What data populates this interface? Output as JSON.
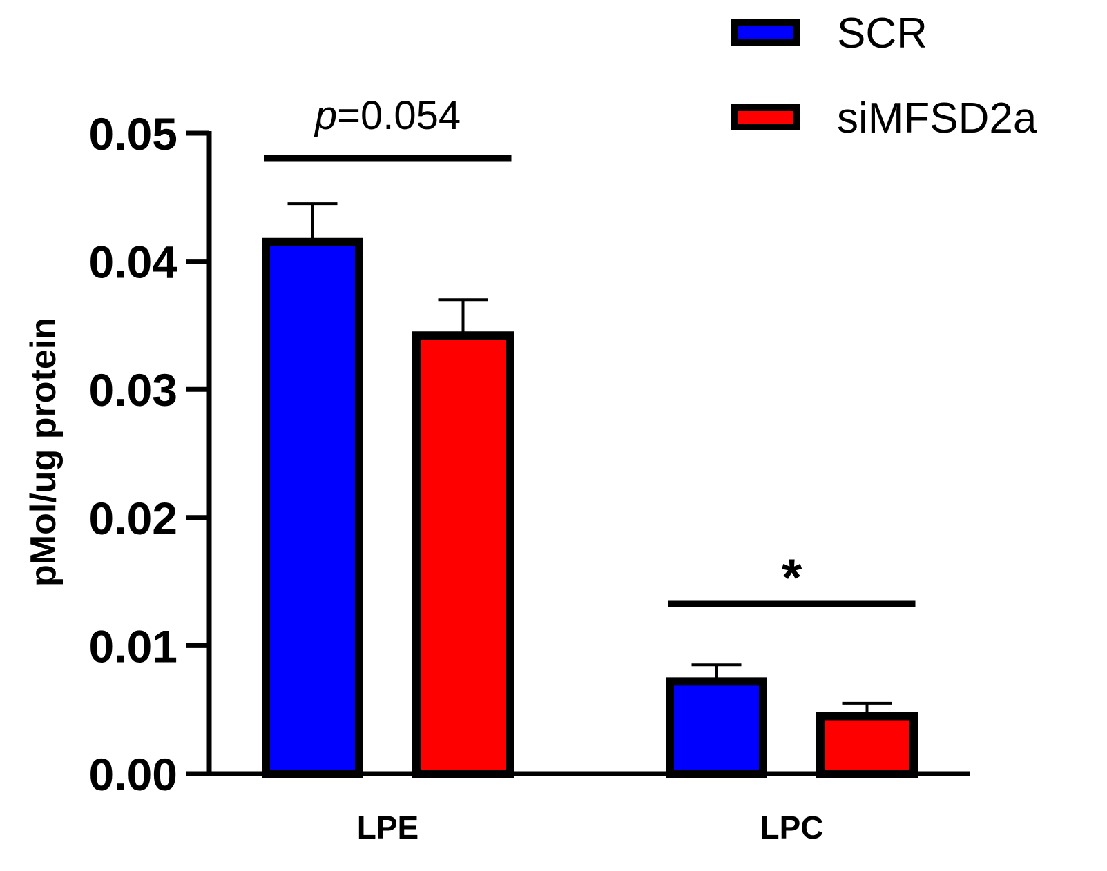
{
  "chart_data": {
    "type": "bar",
    "title": "",
    "xlabel": "",
    "ylabel": "pMol/ug protein",
    "ylim": [
      0,
      0.05
    ],
    "yticks": [
      "0.00",
      "0.01",
      "0.02",
      "0.03",
      "0.04",
      "0.05"
    ],
    "categories": [
      "LPE",
      "LPC"
    ],
    "series": [
      {
        "name": "SCR",
        "color": "#0000ff",
        "values": [
          0.0415,
          0.0072
        ],
        "errors": [
          0.003,
          0.0013
        ]
      },
      {
        "name": "siMFSD2a",
        "color": "#ff0000",
        "values": [
          0.0342,
          0.0045
        ],
        "errors": [
          0.0028,
          0.001
        ]
      }
    ],
    "annotations": [
      {
        "category": "LPE",
        "text_italic": "p",
        "text": "=0.054"
      },
      {
        "category": "LPC",
        "text": "*"
      }
    ],
    "legend_position": "top-right"
  }
}
